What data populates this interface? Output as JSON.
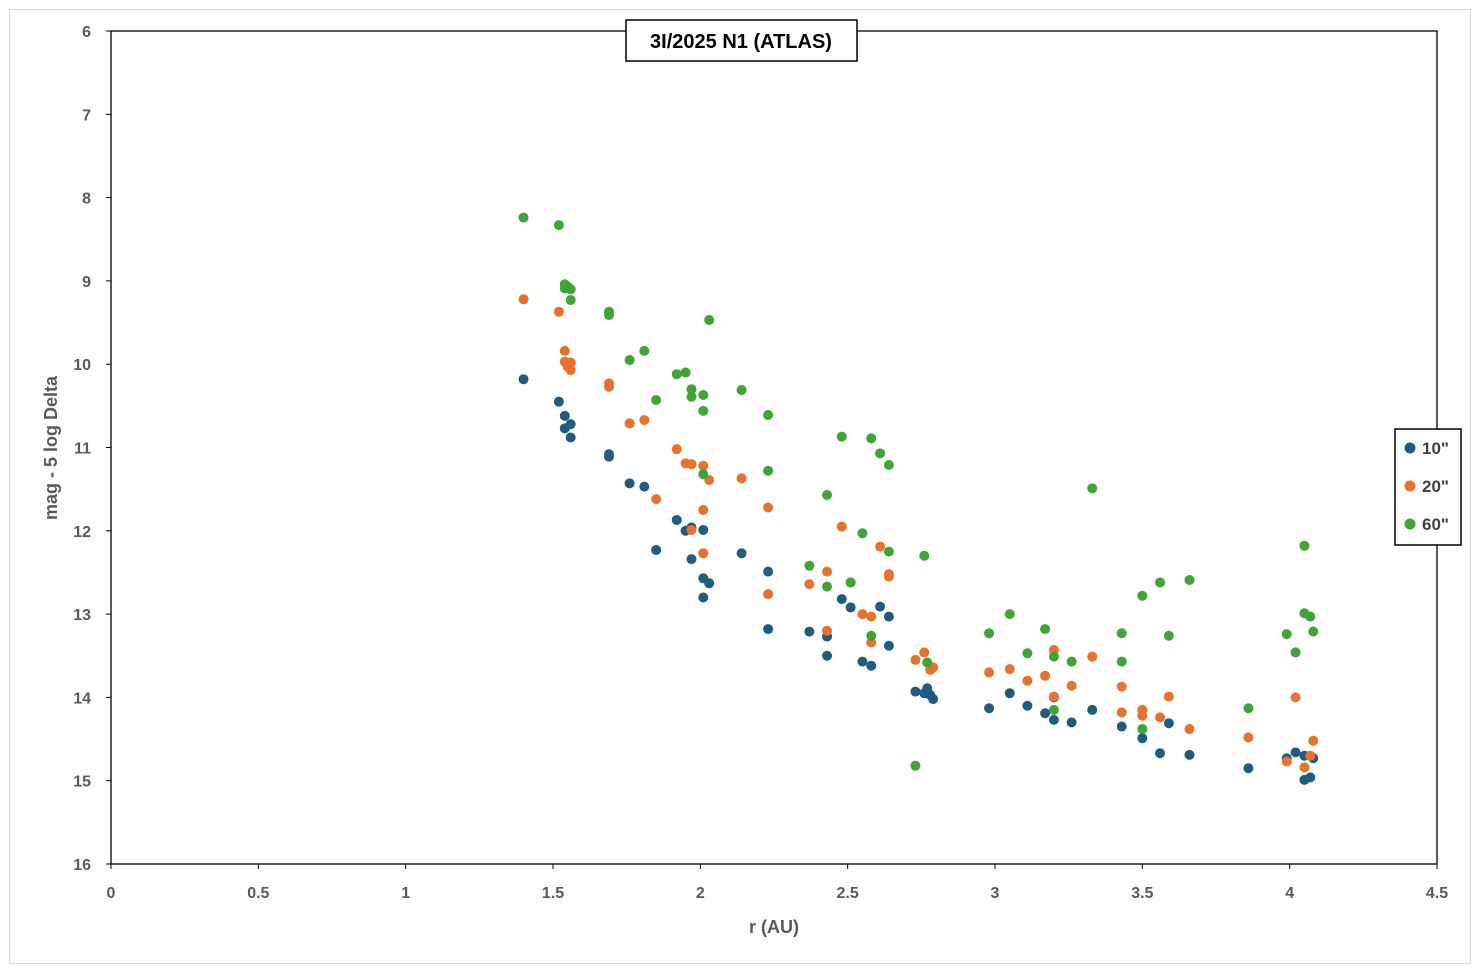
{
  "chart_data": {
    "type": "scatter",
    "title": "3I/2025 N1 (ATLAS)",
    "xlabel": "r (AU)",
    "ylabel": "mag - 5 log Delta",
    "xlim": [
      0,
      4.5
    ],
    "ylim": [
      6,
      16
    ],
    "y_reversed": true,
    "x_ticks": [
      "0",
      "0.5",
      "1",
      "1.5",
      "2",
      "2.5",
      "3",
      "3.5",
      "4",
      "4.5"
    ],
    "y_ticks": [
      "6",
      "7",
      "8",
      "9",
      "10",
      "11",
      "12",
      "13",
      "14",
      "15",
      "16"
    ],
    "grid": false,
    "legend_position": "right",
    "series": [
      {
        "name": "10\"",
        "color": "#1f5c80",
        "points": [
          [
            1.4,
            10.18
          ],
          [
            1.52,
            10.45
          ],
          [
            1.54,
            10.62
          ],
          [
            1.54,
            10.77
          ],
          [
            1.56,
            10.72
          ],
          [
            1.56,
            10.88
          ],
          [
            1.69,
            11.08
          ],
          [
            1.69,
            11.11
          ],
          [
            1.76,
            11.43
          ],
          [
            1.81,
            11.47
          ],
          [
            1.85,
            12.23
          ],
          [
            1.92,
            11.87
          ],
          [
            1.95,
            12.0
          ],
          [
            1.97,
            11.96
          ],
          [
            1.97,
            12.34
          ],
          [
            2.01,
            11.99
          ],
          [
            2.01,
            12.57
          ],
          [
            2.03,
            12.63
          ],
          [
            2.01,
            12.8
          ],
          [
            2.14,
            12.27
          ],
          [
            2.23,
            12.49
          ],
          [
            2.23,
            13.18
          ],
          [
            2.37,
            13.21
          ],
          [
            2.43,
            13.27
          ],
          [
            2.43,
            13.5
          ],
          [
            2.48,
            12.82
          ],
          [
            2.51,
            12.92
          ],
          [
            2.55,
            13.57
          ],
          [
            2.58,
            13.62
          ],
          [
            2.61,
            12.91
          ],
          [
            2.64,
            13.03
          ],
          [
            2.64,
            13.38
          ],
          [
            2.73,
            13.93
          ],
          [
            2.76,
            13.95
          ],
          [
            2.77,
            13.89
          ],
          [
            2.78,
            13.97
          ],
          [
            2.79,
            14.02
          ],
          [
            2.98,
            14.13
          ],
          [
            3.05,
            13.95
          ],
          [
            3.11,
            14.1
          ],
          [
            3.17,
            14.19
          ],
          [
            3.2,
            14.27
          ],
          [
            3.2,
            14.0
          ],
          [
            3.26,
            14.3
          ],
          [
            3.33,
            14.15
          ],
          [
            3.43,
            14.35
          ],
          [
            3.5,
            14.49
          ],
          [
            3.56,
            14.67
          ],
          [
            3.59,
            14.31
          ],
          [
            3.66,
            14.69
          ],
          [
            3.86,
            14.85
          ],
          [
            3.99,
            14.73
          ],
          [
            4.02,
            14.66
          ],
          [
            4.05,
            14.7
          ],
          [
            4.05,
            14.99
          ],
          [
            4.07,
            14.96
          ],
          [
            4.08,
            14.73
          ]
        ]
      },
      {
        "name": "20\"",
        "color": "#e8712b",
        "points": [
          [
            1.4,
            9.22
          ],
          [
            1.52,
            9.37
          ],
          [
            1.54,
            9.84
          ],
          [
            1.54,
            9.97
          ],
          [
            1.55,
            10.03
          ],
          [
            1.56,
            9.98
          ],
          [
            1.56,
            10.07
          ],
          [
            1.69,
            10.23
          ],
          [
            1.69,
            10.27
          ],
          [
            1.76,
            10.71
          ],
          [
            1.81,
            10.67
          ],
          [
            1.85,
            11.62
          ],
          [
            1.92,
            11.02
          ],
          [
            1.95,
            11.19
          ],
          [
            1.97,
            11.2
          ],
          [
            1.97,
            11.99
          ],
          [
            2.01,
            11.22
          ],
          [
            2.01,
            11.75
          ],
          [
            2.01,
            12.27
          ],
          [
            2.03,
            11.39
          ],
          [
            2.14,
            11.37
          ],
          [
            2.23,
            11.72
          ],
          [
            2.23,
            12.76
          ],
          [
            2.37,
            12.64
          ],
          [
            2.43,
            12.49
          ],
          [
            2.43,
            13.2
          ],
          [
            2.48,
            11.95
          ],
          [
            2.51,
            12.62
          ],
          [
            2.55,
            13.0
          ],
          [
            2.58,
            13.03
          ],
          [
            2.58,
            13.34
          ],
          [
            2.61,
            12.19
          ],
          [
            2.64,
            12.52
          ],
          [
            2.64,
            12.55
          ],
          [
            2.73,
            13.55
          ],
          [
            2.76,
            13.46
          ],
          [
            2.78,
            13.67
          ],
          [
            2.79,
            13.64
          ],
          [
            2.98,
            13.7
          ],
          [
            3.05,
            13.66
          ],
          [
            3.11,
            13.8
          ],
          [
            3.17,
            13.74
          ],
          [
            3.2,
            13.43
          ],
          [
            3.2,
            13.99
          ],
          [
            3.26,
            13.86
          ],
          [
            3.33,
            13.51
          ],
          [
            3.43,
            13.87
          ],
          [
            3.43,
            14.18
          ],
          [
            3.5,
            14.15
          ],
          [
            3.5,
            14.22
          ],
          [
            3.56,
            14.24
          ],
          [
            3.59,
            13.99
          ],
          [
            3.66,
            14.38
          ],
          [
            3.86,
            14.48
          ],
          [
            3.99,
            14.77
          ],
          [
            4.02,
            14.0
          ],
          [
            4.05,
            14.84
          ],
          [
            4.07,
            14.7
          ],
          [
            4.08,
            14.52
          ]
        ]
      },
      {
        "name": "60\"",
        "color": "#3fa535",
        "points": [
          [
            1.4,
            8.24
          ],
          [
            1.52,
            8.33
          ],
          [
            1.54,
            9.04
          ],
          [
            1.54,
            9.09
          ],
          [
            1.55,
            9.07
          ],
          [
            1.56,
            9.1
          ],
          [
            1.56,
            9.23
          ],
          [
            1.69,
            9.37
          ],
          [
            1.69,
            9.41
          ],
          [
            1.76,
            9.95
          ],
          [
            1.81,
            9.84
          ],
          [
            1.85,
            10.43
          ],
          [
            1.92,
            10.12
          ],
          [
            1.95,
            10.1
          ],
          [
            1.97,
            10.3
          ],
          [
            1.97,
            10.39
          ],
          [
            2.01,
            10.37
          ],
          [
            2.01,
            10.56
          ],
          [
            2.01,
            11.32
          ],
          [
            2.03,
            9.47
          ],
          [
            2.14,
            10.31
          ],
          [
            2.23,
            10.61
          ],
          [
            2.23,
            11.28
          ],
          [
            2.37,
            12.42
          ],
          [
            2.43,
            11.57
          ],
          [
            2.43,
            12.67
          ],
          [
            2.48,
            10.87
          ],
          [
            2.51,
            12.62
          ],
          [
            2.55,
            12.03
          ],
          [
            2.58,
            10.89
          ],
          [
            2.58,
            13.26
          ],
          [
            2.61,
            11.07
          ],
          [
            2.64,
            11.21
          ],
          [
            2.64,
            12.25
          ],
          [
            2.73,
            14.82
          ],
          [
            2.76,
            12.3
          ],
          [
            2.77,
            13.58
          ],
          [
            2.98,
            13.23
          ],
          [
            3.05,
            13.0
          ],
          [
            3.11,
            13.47
          ],
          [
            3.17,
            13.18
          ],
          [
            3.2,
            13.51
          ],
          [
            3.2,
            14.15
          ],
          [
            3.26,
            13.57
          ],
          [
            3.33,
            11.49
          ],
          [
            3.43,
            13.23
          ],
          [
            3.43,
            13.57
          ],
          [
            3.5,
            12.78
          ],
          [
            3.5,
            14.38
          ],
          [
            3.56,
            12.62
          ],
          [
            3.59,
            13.26
          ],
          [
            3.66,
            12.59
          ],
          [
            3.86,
            14.13
          ],
          [
            3.99,
            13.24
          ],
          [
            4.02,
            13.46
          ],
          [
            4.05,
            12.18
          ],
          [
            4.05,
            12.99
          ],
          [
            4.07,
            13.03
          ],
          [
            4.08,
            13.21
          ]
        ]
      }
    ]
  }
}
